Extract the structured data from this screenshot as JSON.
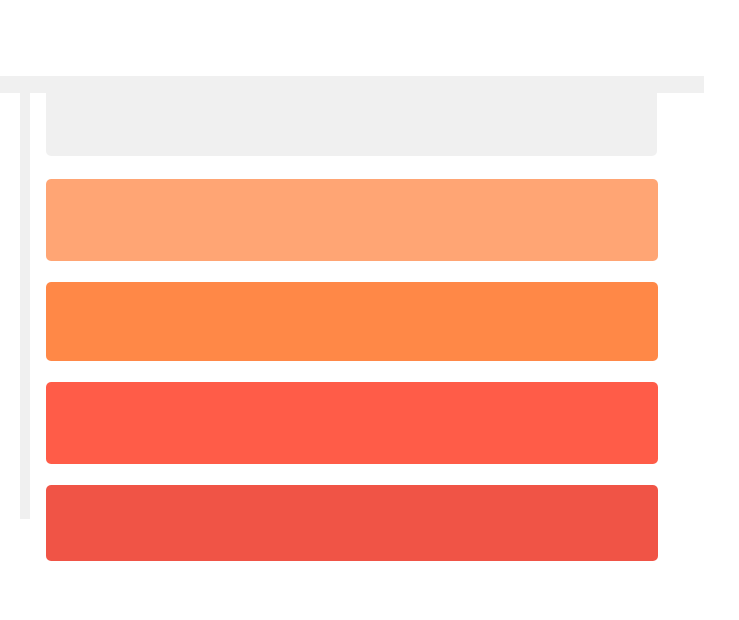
{
  "colors": {
    "background": "#ffffff",
    "rail": "#f0f0f0",
    "pole": "#f0f0f0",
    "panel_top": "#f0f0f0",
    "stripes": [
      "#ffa574",
      "#ff8847",
      "#ff5c48",
      "#f05446"
    ]
  }
}
